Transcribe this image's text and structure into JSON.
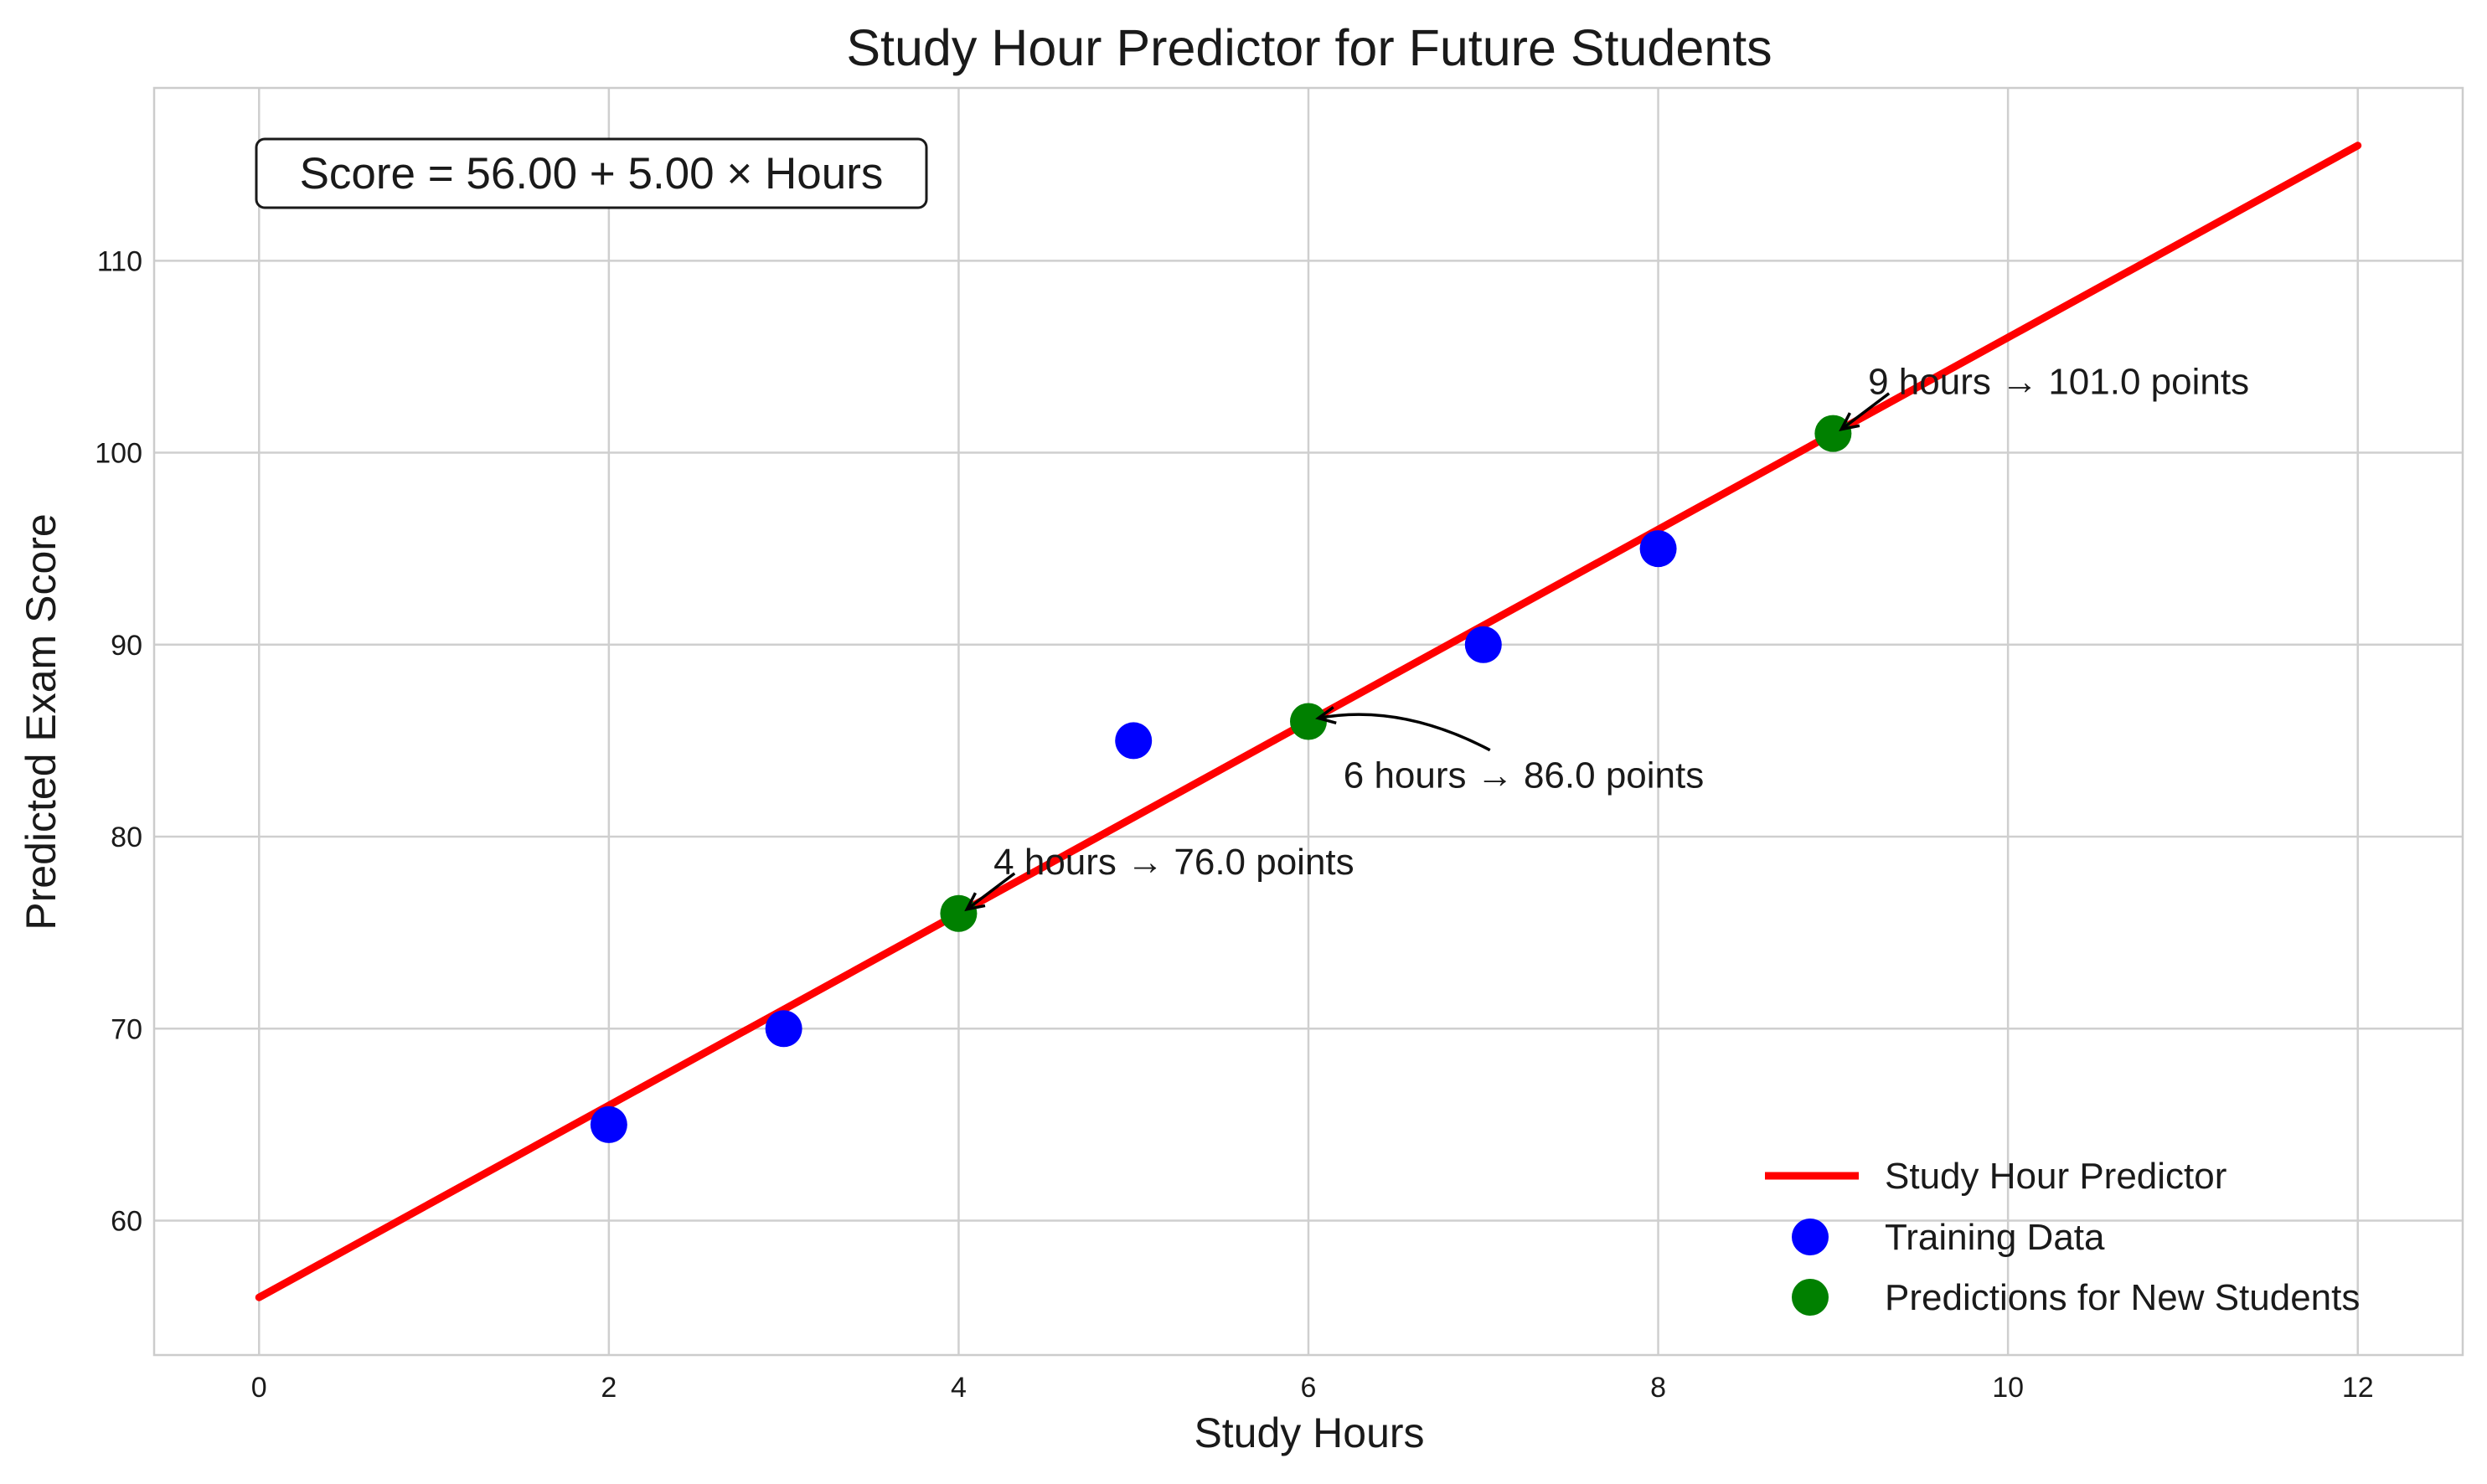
{
  "chart_data": {
    "type": "scatter",
    "title": "Study Hour Predictor for Future Students",
    "xlabel": "Study Hours",
    "ylabel": "Predicted Exam Score",
    "xlim": [
      -0.6,
      12.6
    ],
    "ylim": [
      53,
      119
    ],
    "xticks": [
      0,
      2,
      4,
      6,
      8,
      10,
      12
    ],
    "yticks": [
      60,
      70,
      80,
      90,
      100,
      110
    ],
    "grid": true,
    "legend_position": "bottom-right",
    "equation_text": "Score = 56.00 + 5.00 × Hours",
    "colors": {
      "line": "#ff0000",
      "training": "#0000ff",
      "prediction": "#008000",
      "grid": "#cfcfcf",
      "text": "#1a1a1a"
    },
    "series": [
      {
        "name": "Study Hour Predictor",
        "type": "line",
        "x": [
          0,
          12
        ],
        "y": [
          56,
          116
        ]
      },
      {
        "name": "Training Data",
        "type": "scatter",
        "x": [
          2,
          3,
          5,
          7,
          8
        ],
        "y": [
          65,
          70,
          85,
          90,
          95
        ]
      },
      {
        "name": "Predictions for New Students",
        "type": "scatter",
        "x": [
          4,
          6,
          9
        ],
        "y": [
          76,
          86,
          101
        ]
      }
    ],
    "annotations": [
      {
        "text": "4 hours → 76.0 points",
        "x": 4,
        "y": 76,
        "text_x": 4.2,
        "text_y": 78.7
      },
      {
        "text": "6 hours → 86.0 points",
        "x": 6,
        "y": 86,
        "text_x": 6.2,
        "text_y": 83.2
      },
      {
        "text": "9 hours → 101.0 points",
        "x": 9,
        "y": 101,
        "text_x": 9.2,
        "text_y": 103.7
      }
    ]
  }
}
